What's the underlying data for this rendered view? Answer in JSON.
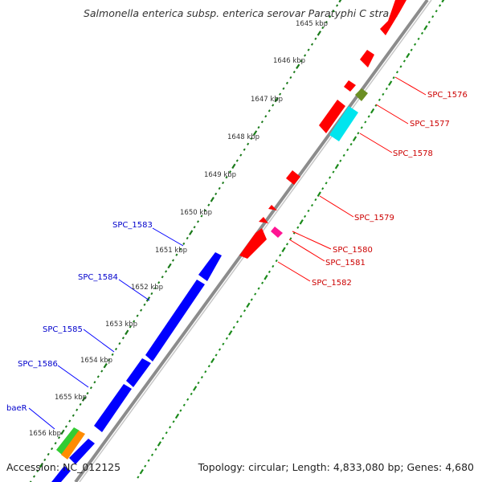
{
  "title": "Salmonella enterica subsp. enterica serovar Paratyphi C stra...",
  "footer": {
    "accession": "Accession: NC_012125",
    "topology": "Topology: circular; Length: 4,833,080 bp; Genes: 4,680"
  },
  "colors": {
    "backbone": "#8c8c8c",
    "forward_strand": "#0000ff",
    "reverse_strand": "#ff0000",
    "tick_marks": "#1a7a1a",
    "gc_skew_marks": "#1a8a1a"
  },
  "ticks": [
    "1645 kbp",
    "1646 kbp",
    "1647 kbp",
    "1648 kbp",
    "1649 kbp",
    "1650 kbp",
    "1651 kbp",
    "1652 kbp",
    "1653 kbp",
    "1654 kbp",
    "1655 kbp",
    "1656 kbp"
  ],
  "gene_labels_reverse": [
    "SPC_1576",
    "SPC_1577",
    "SPC_1578",
    "SPC_1579",
    "SPC_1580",
    "SPC_1581",
    "SPC_1582"
  ],
  "gene_labels_forward": [
    "SPC_1583",
    "SPC_1584",
    "SPC_1585",
    "SPC_1586",
    "baeR"
  ]
}
